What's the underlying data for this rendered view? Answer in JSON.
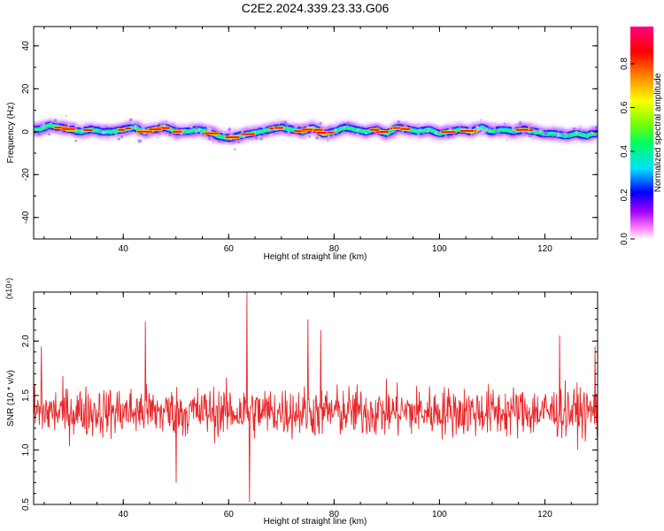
{
  "title": "C2E2.2024.339.23.33.G06",
  "colors": {
    "snr_line": "#e8282b",
    "colormap": [
      "#ffffff",
      "#ff80ff",
      "#a000ff",
      "#0000ff",
      "#00e0ff",
      "#00ff60",
      "#80ff00",
      "#ffff00",
      "#ff8000",
      "#ff0000",
      "#ff0080"
    ]
  },
  "chart_data": [
    {
      "type": "heatmap",
      "description_visible": "spectrogram",
      "xlabel": "Height of straight line (km)",
      "ylabel": "Frequency (Hz)",
      "xlim": [
        23,
        130
      ],
      "ylim": [
        -50,
        49
      ],
      "x_ticks": [
        40,
        60,
        80,
        100,
        120
      ],
      "y_ticks": [
        -40,
        -20,
        0,
        20,
        40
      ],
      "colorbar": {
        "label": "Normalized spectral amplitude",
        "range": [
          0.0,
          0.97
        ],
        "ticks": [
          0.0,
          0.2,
          0.4,
          0.6,
          0.8
        ]
      },
      "ridge_centerline": {
        "x": [
          24,
          26,
          28,
          30,
          32,
          34,
          36,
          38,
          40,
          42,
          44,
          46,
          48,
          50,
          52,
          54,
          56,
          58,
          60,
          62,
          64,
          66,
          68,
          70,
          72,
          74,
          76,
          78,
          80,
          82,
          84,
          86,
          88,
          90,
          92,
          94,
          96,
          98,
          100,
          102,
          104,
          106,
          108,
          110,
          112,
          114,
          116,
          118,
          120,
          122,
          124,
          126,
          128,
          129
        ],
        "y": [
          1,
          3,
          2,
          1,
          0,
          1,
          0,
          0,
          1,
          2,
          0,
          1,
          2,
          0,
          0,
          1,
          0,
          -2,
          -3,
          -2,
          -1,
          0,
          1,
          2,
          1,
          0,
          2,
          -1,
          0,
          2,
          1,
          0,
          1,
          -1,
          2,
          1,
          0,
          1,
          -1,
          0,
          1,
          0,
          2,
          0,
          1,
          0,
          1,
          0,
          -1,
          -1,
          -2,
          -1,
          -2,
          -1
        ]
      }
    },
    {
      "type": "line",
      "xlabel": "Height of straight line (km)",
      "ylabel": "SNR (10 * v/v)",
      "y_multiplier": "(x10⁴)",
      "xlim": [
        23,
        130
      ],
      "ylim": [
        0.5,
        2.45
      ],
      "x_ticks": [
        40,
        60,
        80,
        100,
        120
      ],
      "y_ticks": [
        0.5,
        1.0,
        1.5,
        2.0
      ],
      "series": [
        {
          "x_range": [
            23,
            130
          ],
          "mean": 1.35,
          "spread": 0.25,
          "spikes": [
            {
              "x": 24.5,
              "y": 1.95
            },
            {
              "x": 44.2,
              "y": 2.18
            },
            {
              "x": 50.0,
              "y": 0.7
            },
            {
              "x": 63.5,
              "y": 2.45
            },
            {
              "x": 64.0,
              "y": 0.52
            },
            {
              "x": 75.0,
              "y": 2.2
            },
            {
              "x": 77.5,
              "y": 2.1
            },
            {
              "x": 122.8,
              "y": 2.05
            },
            {
              "x": 129.5,
              "y": 1.95
            }
          ]
        }
      ]
    }
  ]
}
